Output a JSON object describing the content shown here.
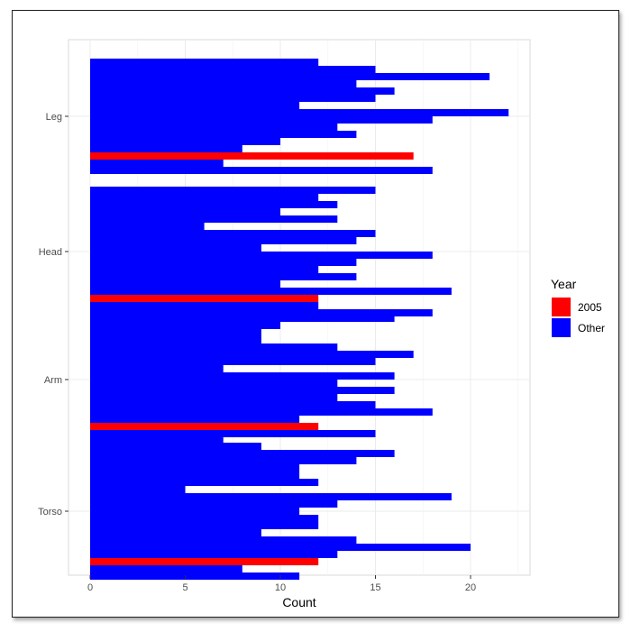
{
  "chart_data": {
    "type": "bar",
    "orientation": "horizontal",
    "xlabel": "Count",
    "ylabel": "",
    "xlim": [
      0,
      23
    ],
    "x_ticks": [
      0,
      5,
      10,
      15,
      20
    ],
    "grid": true,
    "legend": {
      "title": "Year",
      "placement": "right",
      "entries": [
        {
          "label": "2005",
          "color": "#ff0000"
        },
        {
          "label": "Other",
          "color": "#0000ff"
        }
      ]
    },
    "colors": {
      "highlight": "#ff0000",
      "other": "#0000ff"
    },
    "categories": [
      {
        "name": "Leg",
        "values": [
          12,
          15,
          21,
          14,
          16,
          15,
          11,
          22,
          18,
          13,
          14,
          10,
          8,
          17,
          7,
          18
        ],
        "highlight_index": 13
      },
      {
        "name": "Head",
        "values": [
          15,
          12,
          13,
          10,
          13,
          6,
          15,
          14,
          9,
          18,
          14,
          12,
          14,
          10,
          19,
          12,
          12,
          18
        ],
        "highlight_index": 15
      },
      {
        "name": "Arm",
        "values": [
          16,
          10,
          9,
          9,
          13,
          17,
          15,
          7,
          16,
          13,
          16,
          13,
          15,
          18,
          11,
          12,
          15,
          7
        ],
        "highlight_index": 15
      },
      {
        "name": "Torso",
        "values": [
          9,
          16,
          14,
          11,
          11,
          12,
          5,
          19,
          13,
          11,
          12,
          12,
          9,
          14,
          20,
          13,
          12,
          8,
          11
        ],
        "highlight_index": 16
      }
    ]
  }
}
